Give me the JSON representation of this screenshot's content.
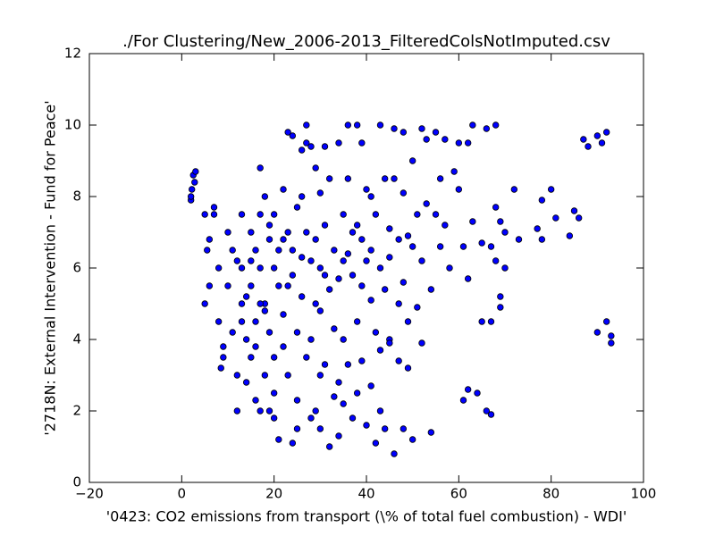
{
  "chart_data": {
    "type": "scatter",
    "title": "./For Clustering/New_2006-2013_FilteredColsNotImputed.csv",
    "x_label": "'0423: CO2 emissions from transport  (\\% of total fuel combustion) - WDI'",
    "y_label": "'2718N: External Intervention - Fund for Peace'",
    "color": "#0000ff",
    "xlim": [
      -20,
      100
    ],
    "ylim": [
      0,
      12
    ],
    "xticks": [
      {
        "value": -20,
        "label": "−20"
      },
      0,
      20,
      40,
      60,
      80,
      100
    ],
    "yticks": [
      0,
      2,
      4,
      6,
      8,
      10,
      12
    ],
    "grid": false,
    "x": [
      2,
      2.2,
      2.5,
      3,
      2.8,
      2,
      5,
      5.5,
      6,
      5,
      6,
      7,
      7,
      8,
      8,
      9,
      8.5,
      9,
      10,
      10,
      11,
      11,
      12,
      12,
      13,
      13,
      13,
      14,
      14,
      15,
      15,
      15,
      16,
      16,
      16,
      17,
      17,
      17,
      17,
      18,
      18,
      18,
      19,
      19,
      19,
      20,
      20,
      20,
      20,
      21,
      21,
      22,
      22,
      22,
      23,
      23,
      23,
      24,
      24,
      24,
      25,
      25,
      25,
      26,
      26,
      26,
      27,
      27,
      27,
      28,
      28,
      28,
      29,
      29,
      29,
      30,
      30,
      30,
      30,
      31,
      31,
      31,
      32,
      32,
      32,
      33,
      33,
      34,
      34,
      34,
      35,
      35,
      35,
      36,
      36,
      36,
      36,
      37,
      37,
      38,
      38,
      38,
      38,
      39,
      39,
      39,
      40,
      40,
      40,
      41,
      41,
      41,
      42,
      42,
      42,
      43,
      43,
      43,
      44,
      44,
      44,
      45,
      45,
      45,
      46,
      46,
      46,
      47,
      47,
      48,
      48,
      48,
      48,
      49,
      49,
      50,
      50,
      50,
      51,
      51,
      52,
      52,
      52,
      53,
      53,
      54,
      54,
      55,
      55,
      56,
      56,
      57,
      57,
      58,
      59,
      60,
      60,
      61,
      61,
      62,
      62,
      62,
      63,
      63,
      64,
      65,
      65,
      66,
      66,
      67,
      67,
      67,
      68,
      68,
      68,
      69,
      69,
      69,
      70,
      70,
      72,
      73,
      77,
      78,
      78,
      80,
      81,
      84,
      85,
      86,
      87,
      88,
      90,
      90,
      91,
      92,
      92,
      93,
      93,
      12,
      14,
      16,
      18,
      20,
      22,
      24,
      26,
      28,
      30,
      13,
      15,
      17,
      19,
      21,
      23,
      25,
      27,
      29,
      31,
      33,
      35,
      37,
      39,
      41,
      43,
      45,
      47,
      49,
      34
    ],
    "values": [
      7.9,
      8.2,
      8.6,
      8.7,
      8.4,
      8,
      7.5,
      6.5,
      6.8,
      5,
      5.5,
      7.7,
      7.5,
      6,
      4.5,
      3.8,
      3.2,
      3.5,
      7,
      5.5,
      6.5,
      4.2,
      2,
      3,
      7.5,
      6,
      5,
      4,
      2.8,
      7,
      5.5,
      3.5,
      6.5,
      4.5,
      2.3,
      8.8,
      7.5,
      6,
      2,
      5,
      3,
      8,
      6.8,
      4.2,
      2,
      7.5,
      6,
      1.8,
      3.5,
      5.5,
      1.2,
      4.7,
      6.8,
      8.2,
      9.8,
      7,
      3,
      9.7,
      5.8,
      1.1,
      4.2,
      7.7,
      2.3,
      9.3,
      6.3,
      5.2,
      10,
      9.5,
      3.5,
      9.4,
      6.2,
      1.8,
      8.8,
      5,
      2,
      8.1,
      6,
      4.8,
      1.5,
      9.4,
      7.2,
      3.3,
      8.5,
      5.4,
      1,
      6.5,
      2.4,
      9.5,
      5.7,
      1.3,
      7.5,
      4,
      2.2,
      10,
      8.5,
      6.4,
      3.3,
      5.8,
      1.8,
      10,
      7.2,
      4.5,
      2.5,
      9.5,
      6.8,
      3.4,
      8.2,
      6.2,
      1.6,
      8,
      5.1,
      2.7,
      7.5,
      4.2,
      1.1,
      10,
      6,
      3.7,
      8.5,
      5.4,
      1.5,
      7.1,
      4,
      3.9,
      9.9,
      8.5,
      0.8,
      6.8,
      3.4,
      9.8,
      8.1,
      5.6,
      1.5,
      6.9,
      3.2,
      9,
      6.6,
      1.2,
      7.5,
      4.9,
      9.9,
      6.2,
      3.9,
      9.6,
      7.8,
      5.4,
      1.4,
      9.8,
      7.5,
      8.5,
      6.6,
      7.2,
      9.6,
      6,
      8.7,
      9.5,
      8.2,
      6.6,
      2.3,
      9.5,
      5.7,
      2.6,
      10,
      7.3,
      2.5,
      4.5,
      6.7,
      9.9,
      2,
      6.6,
      4.5,
      1.9,
      10,
      7.7,
      6.2,
      7.3,
      4.9,
      5.2,
      6,
      7,
      8.2,
      6.8,
      7.1,
      6.8,
      7.9,
      8.2,
      7.4,
      6.9,
      7.6,
      7.4,
      9.6,
      9.4,
      9.7,
      4.2,
      9.5,
      9.8,
      4.5,
      4.1,
      3.9,
      6.2,
      5.2,
      3.8,
      4.8,
      2.5,
      3.8,
      6.5,
      8,
      4,
      3,
      4.5,
      6.2,
      5,
      7.2,
      6.5,
      5.5,
      1.5,
      7,
      6.8,
      5.8,
      4.3,
      6.2,
      7,
      5.5,
      6.5,
      2,
      6.3,
      5,
      4.5,
      2.8
    ]
  }
}
